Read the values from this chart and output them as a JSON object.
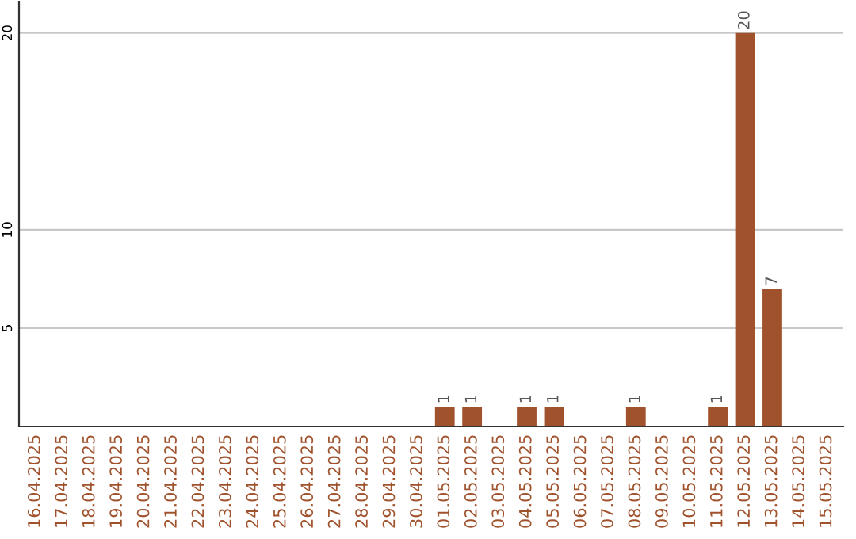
{
  "chart_data": {
    "type": "bar",
    "categories": [
      "16.04.2025",
      "17.04.2025",
      "18.04.2025",
      "19.04.2025",
      "20.04.2025",
      "21.04.2025",
      "22.04.2025",
      "23.04.2025",
      "24.04.2025",
      "25.04.2025",
      "26.04.2025",
      "27.04.2025",
      "28.04.2025",
      "29.04.2025",
      "30.04.2025",
      "01.05.2025",
      "02.05.2025",
      "03.05.2025",
      "04.05.2025",
      "05.05.2025",
      "06.05.2025",
      "07.05.2025",
      "08.05.2025",
      "09.05.2025",
      "10.05.2025",
      "11.05.2025",
      "12.05.2025",
      "13.05.2025",
      "14.05.2025",
      "15.05.2025"
    ],
    "values": [
      0,
      0,
      0,
      0,
      0,
      0,
      0,
      0,
      0,
      0,
      0,
      0,
      0,
      0,
      0,
      1,
      1,
      0,
      1,
      1,
      0,
      0,
      1,
      0,
      0,
      1,
      20,
      7,
      0,
      0
    ],
    "value_labels": [
      null,
      null,
      null,
      null,
      null,
      null,
      null,
      null,
      null,
      null,
      null,
      null,
      null,
      null,
      null,
      "1",
      "1",
      null,
      "1",
      "1",
      null,
      null,
      "1",
      null,
      null,
      "1",
      "20",
      "7",
      null,
      null
    ],
    "color": "#a0522d",
    "ylim": [
      0,
      21.6
    ],
    "yticks": [
      5,
      10,
      20
    ],
    "grid": "y"
  }
}
